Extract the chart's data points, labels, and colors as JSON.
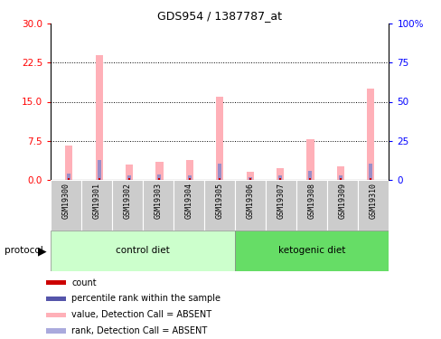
{
  "title": "GDS954 / 1387787_at",
  "samples": [
    "GSM19300",
    "GSM19301",
    "GSM19302",
    "GSM19303",
    "GSM19304",
    "GSM19305",
    "GSM19306",
    "GSM19307",
    "GSM19308",
    "GSM19309",
    "GSM19310"
  ],
  "pink_bar_values": [
    6.5,
    24.0,
    3.0,
    3.5,
    3.8,
    16.0,
    1.6,
    2.2,
    7.8,
    2.5,
    17.5
  ],
  "red_marker_values": [
    0.25,
    0.25,
    0.25,
    0.25,
    0.25,
    0.25,
    0.25,
    0.25,
    0.25,
    0.25,
    0.25
  ],
  "blue_bar_values": [
    4.0,
    12.5,
    2.5,
    3.5,
    3.0,
    10.5,
    1.5,
    2.5,
    5.5,
    2.5,
    10.5
  ],
  "left_ylim": [
    0,
    30
  ],
  "right_ylim": [
    0,
    100
  ],
  "left_yticks": [
    0,
    7.5,
    15,
    22.5,
    30
  ],
  "right_yticks": [
    0,
    25,
    50,
    75,
    100
  ],
  "right_yticklabels": [
    "0",
    "25",
    "50",
    "75",
    "100%"
  ],
  "control_samples": 6,
  "ketogenic_samples": 5,
  "control_label": "control diet",
  "ketogenic_label": "ketogenic diet",
  "protocol_label": "protocol",
  "pink_color": "#FFB0B8",
  "red_color": "#CC0000",
  "blue_color": "#8888CC",
  "control_bg_light": "#CCFFCC",
  "control_bg_dark": "#66DD66",
  "sample_bg": "#CCCCCC",
  "legend_items": [
    {
      "color": "#CC0000",
      "label": "count"
    },
    {
      "color": "#5555AA",
      "label": "percentile rank within the sample"
    },
    {
      "color": "#FFB0B8",
      "label": "value, Detection Call = ABSENT"
    },
    {
      "color": "#AAAADD",
      "label": "rank, Detection Call = ABSENT"
    }
  ]
}
